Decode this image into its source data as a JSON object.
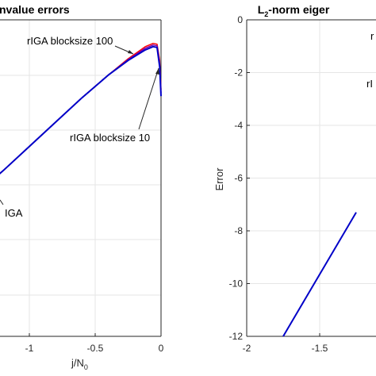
{
  "chart_data": [
    {
      "type": "line",
      "title_visible": "nvalue errors",
      "xlabel_main": "j/N",
      "xlabel_sub": "0",
      "ylabel": "",
      "xlim": [
        -1.5,
        0
      ],
      "xticks": [
        -1,
        -0.5,
        0
      ],
      "xtick_labels": [
        "-1",
        "-0.5",
        "0"
      ],
      "grid": true,
      "series": [
        {
          "name": "IGA",
          "color": "#ff0000",
          "x": [
            -1.5,
            -1.3,
            -1.2,
            -1.0,
            -0.8,
            -0.6,
            -0.4,
            -0.25,
            -0.12,
            -0.06,
            -0.03,
            -0.01,
            0.0
          ],
          "values": [
            0.0,
            0.15,
            0.22,
            0.37,
            0.52,
            0.67,
            0.81,
            0.91,
            0.985,
            1.005,
            1.0,
            0.9,
            0.72
          ]
        },
        {
          "name": "rIGA blocksize 100",
          "color": "#7a00a8",
          "x": [
            -1.5,
            -1.3,
            -1.2,
            -1.0,
            -0.8,
            -0.6,
            -0.4,
            -0.25,
            -0.12,
            -0.06,
            -0.03,
            -0.01,
            0.0
          ],
          "values": [
            0.0,
            0.15,
            0.22,
            0.37,
            0.52,
            0.67,
            0.81,
            0.905,
            0.975,
            0.995,
            0.99,
            0.88,
            0.7
          ]
        },
        {
          "name": "rIGA blocksize 10",
          "color": "#0000c8",
          "x": [
            -1.5,
            -1.3,
            -1.2,
            -1.0,
            -0.8,
            -0.6,
            -0.4,
            -0.25,
            -0.12,
            -0.06,
            -0.03,
            -0.01,
            0.0
          ],
          "values": [
            0.0,
            0.15,
            0.22,
            0.37,
            0.52,
            0.67,
            0.81,
            0.9,
            0.965,
            0.985,
            0.98,
            0.86,
            0.68
          ]
        }
      ],
      "ylim": [
        -0.8,
        1.15
      ],
      "annotations": [
        {
          "text": "rIGA blocksize 100"
        },
        {
          "text": "rIGA blocksize 10"
        },
        {
          "text": "IGA"
        }
      ]
    },
    {
      "type": "line",
      "title_main": "L",
      "title_sub": "2",
      "title_rest": "-norm eiger",
      "xlabel": "",
      "ylabel": "Error",
      "xlim": [
        -2,
        -1.25
      ],
      "ylim": [
        -12,
        0
      ],
      "xticks": [
        -2,
        -1.5
      ],
      "xtick_labels": [
        "-2",
        "-1.5"
      ],
      "yticks": [
        0,
        -2,
        -4,
        -6,
        -8,
        -10,
        -12
      ],
      "ytick_labels": [
        "0",
        "-2",
        "-4",
        "-6",
        "-8",
        "-10",
        "-12"
      ],
      "grid": true,
      "series": [
        {
          "name": "",
          "color": "#0000c8",
          "x": [
            -1.75,
            -1.25
          ],
          "values": [
            -12.0,
            -7.3
          ]
        }
      ],
      "edge_labels": [
        "r",
        "rI"
      ]
    }
  ]
}
